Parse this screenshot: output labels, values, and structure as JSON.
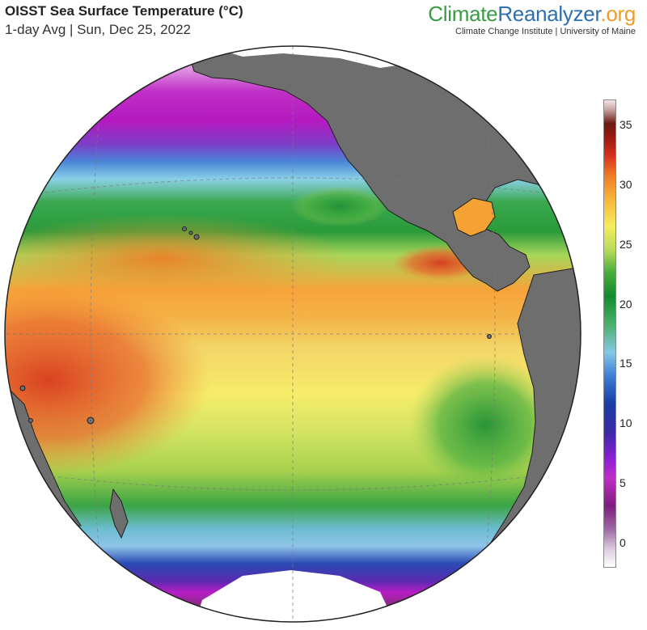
{
  "header": {
    "title": "OISST Sea Surface Temperature (°C)",
    "subtitle": "1-day Avg | Sun, Dec 25, 2022"
  },
  "brand": {
    "part1": "Climate",
    "part2": "Reanalyzer",
    "part3": ".org",
    "tagline": "Climate Change Institute | University of Maine"
  },
  "colorbar": {
    "ticks": [
      "35",
      "30",
      "25",
      "20",
      "15",
      "10",
      "5",
      "0"
    ],
    "min": -2,
    "max": 37
  },
  "colors": {
    "land": "#6e6e6e",
    "ice": "#ffffff",
    "brand_green": "#3a9b44",
    "brand_blue": "#2e6fb0",
    "brand_orange": "#f09a2c"
  }
}
